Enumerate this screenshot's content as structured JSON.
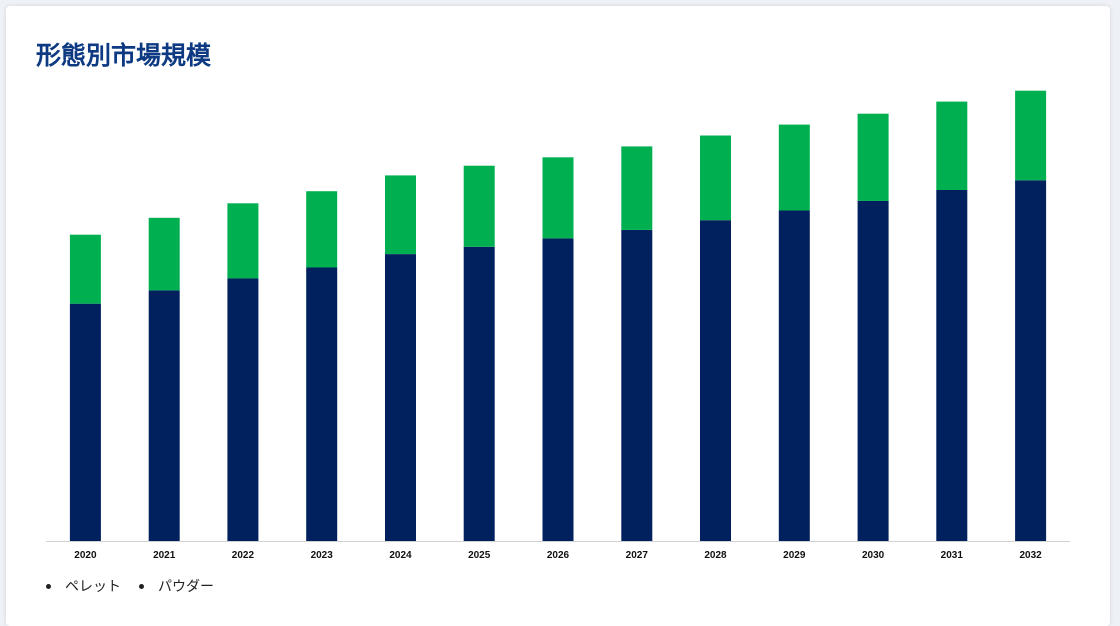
{
  "chart_data": {
    "type": "bar",
    "stacked": true,
    "title": "形態別市場規模",
    "xlabel": "",
    "ylabel": "",
    "categories": [
      "2020",
      "2021",
      "2022",
      "2023",
      "2024",
      "2025",
      "2026",
      "2027",
      "2028",
      "2029",
      "2030",
      "2031",
      "2032"
    ],
    "series": [
      {
        "name": "ペレット",
        "color": "#00205e",
        "values": [
          196,
          207,
          217,
          226,
          237,
          243,
          250,
          257,
          265,
          273,
          281,
          290,
          298
        ]
      },
      {
        "name": "パウダー",
        "color": "#00b050",
        "values": [
          57,
          60,
          62,
          63,
          65,
          67,
          67,
          69,
          70,
          71,
          72,
          73,
          74
        ]
      }
    ],
    "ylim": [
      0,
      380
    ],
    "grid": false,
    "legend_position": "bottom-left"
  }
}
